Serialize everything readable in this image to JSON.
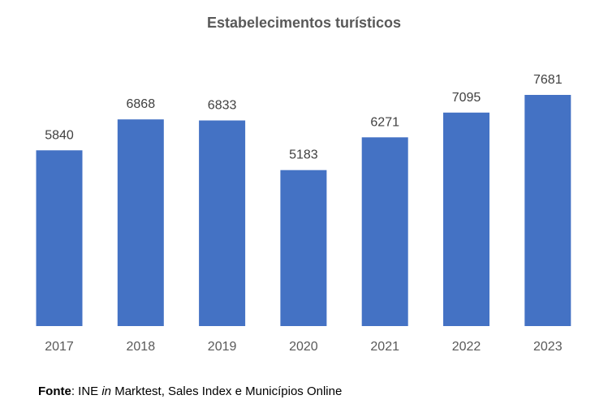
{
  "chart_data": {
    "type": "bar",
    "title": "Estabelecimentos turísticos",
    "categories": [
      "2017",
      "2018",
      "2019",
      "2020",
      "2021",
      "2022",
      "2023"
    ],
    "values": [
      5840,
      6868,
      6833,
      5183,
      6271,
      7095,
      7681
    ],
    "data_labels": [
      "5840",
      "6868",
      "6833",
      "5183",
      "6271",
      "7095",
      "7681"
    ],
    "ylim": [
      0,
      8000
    ],
    "grid": false,
    "legend": "none",
    "bar_color": "#4472C4"
  },
  "source": {
    "label": "Fonte",
    "separator": ": INE ",
    "italic_word": "in",
    "rest": " Marktest, Sales Index e Municípios Online"
  }
}
